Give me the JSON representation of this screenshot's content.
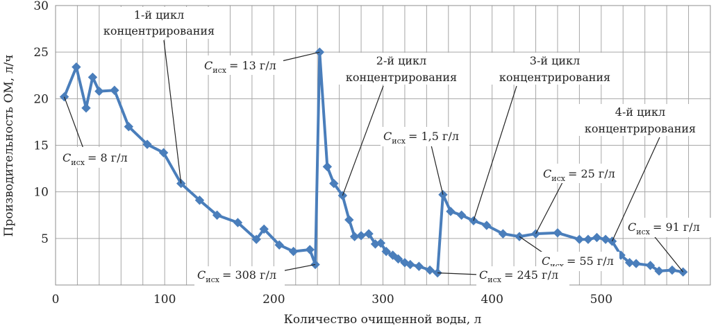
{
  "chart_data": {
    "type": "line",
    "title": "",
    "xlabel": "Количество очищенной воды, л",
    "ylabel": "Производительность ОМ, л/ч",
    "xlim": [
      0,
      600
    ],
    "ylim": [
      0,
      30
    ],
    "x_ticks": [
      0,
      100,
      200,
      300,
      400,
      500
    ],
    "y_ticks": [
      5,
      10,
      15,
      20,
      25,
      30
    ],
    "x_tick_labels": [
      "0",
      "100",
      "200",
      "300",
      "400",
      "500"
    ],
    "y_tick_labels": [
      "5",
      "10",
      "15",
      "20",
      "25",
      "30"
    ],
    "x_minor_step": 20,
    "grid": true,
    "series": [
      {
        "color": "#4a7ebb",
        "marker": "diamond",
        "points": [
          [
            8,
            20.2
          ],
          [
            19,
            23.4
          ],
          [
            28,
            19.0
          ],
          [
            34,
            22.3
          ],
          [
            40,
            20.8
          ],
          [
            54,
            20.9
          ],
          [
            67,
            17.0
          ],
          [
            84,
            15.1
          ],
          [
            99,
            14.2
          ],
          [
            115,
            10.9
          ],
          [
            132,
            9.1
          ],
          [
            148,
            7.5
          ],
          [
            167,
            6.7
          ],
          [
            184,
            4.9
          ],
          [
            191,
            6.0
          ],
          [
            205,
            4.3
          ],
          [
            218,
            3.6
          ],
          [
            233,
            3.8
          ],
          [
            238,
            2.2
          ],
          [
            242,
            25.0
          ],
          [
            249,
            12.7
          ],
          [
            255,
            10.9
          ],
          [
            263,
            9.6
          ],
          [
            269,
            7.0
          ],
          [
            274,
            5.2
          ],
          [
            280,
            5.3
          ],
          [
            287,
            5.5
          ],
          [
            293,
            4.4
          ],
          [
            298,
            4.5
          ],
          [
            303,
            3.6
          ],
          [
            309,
            3.2
          ],
          [
            314,
            2.8
          ],
          [
            320,
            2.4
          ],
          [
            325,
            2.2
          ],
          [
            333,
            2.0
          ],
          [
            343,
            1.6
          ],
          [
            350,
            1.3
          ],
          [
            355,
            9.7
          ],
          [
            362,
            7.9
          ],
          [
            372,
            7.5
          ],
          [
            383,
            6.9
          ],
          [
            395,
            6.4
          ],
          [
            410,
            5.5
          ],
          [
            425,
            5.2
          ],
          [
            440,
            5.5
          ],
          [
            460,
            5.6
          ],
          [
            480,
            4.9
          ],
          [
            488,
            4.9
          ],
          [
            496,
            5.1
          ],
          [
            504,
            4.9
          ],
          [
            510,
            4.7
          ],
          [
            518,
            3.2
          ],
          [
            526,
            2.4
          ],
          [
            532,
            2.3
          ],
          [
            545,
            2.1
          ],
          [
            553,
            1.5
          ],
          [
            565,
            1.6
          ],
          [
            575,
            1.4
          ]
        ]
      }
    ],
    "annotations": {
      "cycle1": {
        "lines": [
          "1-й цикл",
          "концентрирования"
        ],
        "target": [
          115,
          10.9
        ]
      },
      "cycle2": {
        "lines": [
          "2-й цикл",
          "концентрирования"
        ],
        "target": [
          263,
          9.6
        ]
      },
      "cycle3": {
        "lines": [
          "3-й цикл",
          "концентрирования"
        ],
        "target": [
          383,
          6.9
        ]
      },
      "cycle4": {
        "lines": [
          "4-й цикл",
          "концентрирования"
        ],
        "target": [
          510,
          4.7
        ]
      },
      "c8": {
        "sym": "C",
        "sub": "исх",
        "value": "= 8 г/л",
        "target": [
          8,
          20.2
        ]
      },
      "c13": {
        "sym": "C",
        "sub": "исх",
        "value": "= 13 г/л",
        "target": [
          242,
          25.0
        ]
      },
      "c15": {
        "sym": "C",
        "sub": "исх",
        "value": "= 1,5 г/л",
        "target": [
          355,
          9.7
        ]
      },
      "c25": {
        "sym": "C",
        "sub": "исх",
        "value": "= 25 г/л",
        "target": [
          440,
          5.5
        ]
      },
      "c91": {
        "sym": "C",
        "sub": "исх",
        "value": "= 91 г/л",
        "target": [
          575,
          1.4
        ]
      },
      "c55": {
        "sym": "C",
        "sub": "исх",
        "value": "= 55 г/л",
        "target": [
          425,
          5.2
        ]
      },
      "c308": {
        "sym": "C",
        "sub": "исх",
        "value": "= 308 г/л",
        "target": [
          238,
          2.2
        ]
      },
      "c245": {
        "sym": "C",
        "sub": "исх",
        "value": "= 245 г/л",
        "target": [
          350,
          1.3
        ]
      }
    }
  }
}
